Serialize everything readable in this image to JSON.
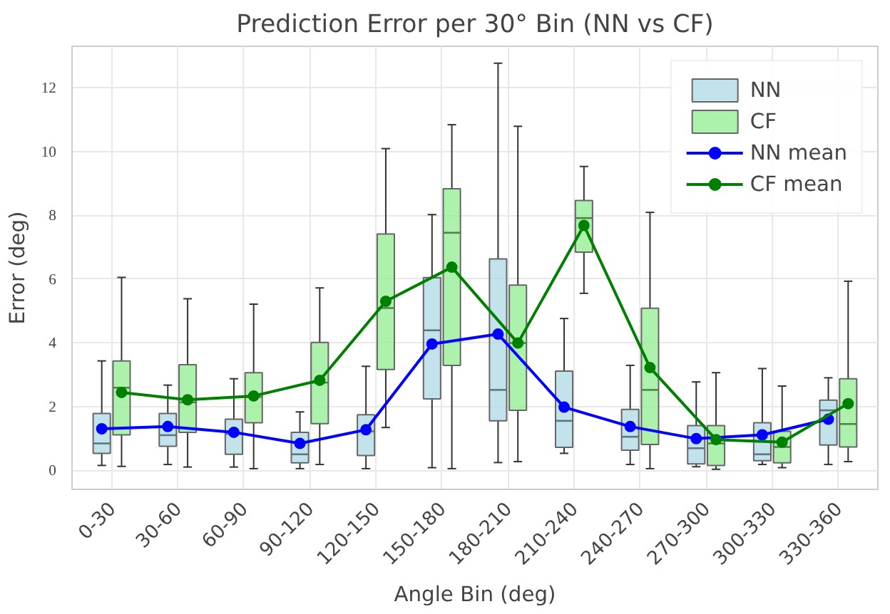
{
  "chart_data": {
    "type": "box",
    "title": "Prediction Error per 30° Bin (NN vs CF)",
    "xlabel": "Angle Bin (deg)",
    "ylabel": "Error (deg)",
    "categories": [
      "0-30",
      "30-60",
      "60-90",
      "90-120",
      "120-150",
      "150-180",
      "180-210",
      "210-240",
      "240-270",
      "270-300",
      "300-330",
      "330-360"
    ],
    "ylim": [
      -0.6,
      13.3
    ],
    "yticks": [
      0,
      2,
      4,
      6,
      8,
      10,
      12
    ],
    "grid": true,
    "legend": "top right",
    "series": [
      {
        "name": "NN",
        "color": "#add8e6",
        "boxes": [
          {
            "low": 0.15,
            "q1": 0.53,
            "median": 0.84,
            "q3": 1.78,
            "high": 3.43
          },
          {
            "low": 0.18,
            "q1": 0.75,
            "median": 1.1,
            "q3": 1.78,
            "high": 2.67
          },
          {
            "low": 0.1,
            "q1": 0.5,
            "median": 1.14,
            "q3": 1.6,
            "high": 2.87
          },
          {
            "low": 0.05,
            "q1": 0.23,
            "median": 0.5,
            "q3": 1.19,
            "high": 1.83
          },
          {
            "low": 0.05,
            "q1": 0.46,
            "median": 1.22,
            "q3": 1.74,
            "high": 3.26
          },
          {
            "low": 0.08,
            "q1": 2.24,
            "median": 4.39,
            "q3": 6.04,
            "high": 8.02
          },
          {
            "low": 0.24,
            "q1": 1.55,
            "median": 2.52,
            "q3": 6.63,
            "high": 12.77
          },
          {
            "low": 0.53,
            "q1": 0.72,
            "median": 1.55,
            "q3": 3.11,
            "high": 4.76
          },
          {
            "low": 0.18,
            "q1": 0.63,
            "median": 1.05,
            "q3": 1.91,
            "high": 3.29
          },
          {
            "low": 0.11,
            "q1": 0.2,
            "median": 0.69,
            "q3": 1.4,
            "high": 2.77
          },
          {
            "low": 0.18,
            "q1": 0.3,
            "median": 0.5,
            "q3": 1.49,
            "high": 3.19
          },
          {
            "low": 0.18,
            "q1": 0.79,
            "median": 1.88,
            "q3": 2.2,
            "high": 2.9
          }
        ]
      },
      {
        "name": "CF",
        "color": "#90ee90",
        "boxes": [
          {
            "low": 0.12,
            "q1": 1.11,
            "median": 2.59,
            "q3": 3.43,
            "high": 6.05
          },
          {
            "low": 0.1,
            "q1": 1.19,
            "median": 2.13,
            "q3": 3.31,
            "high": 5.38
          },
          {
            "low": 0.05,
            "q1": 1.49,
            "median": 2.3,
            "q3": 3.06,
            "high": 5.21
          },
          {
            "low": 0.18,
            "q1": 1.46,
            "median": 2.75,
            "q3": 4.01,
            "high": 5.72
          },
          {
            "low": 1.34,
            "q1": 3.16,
            "median": 5.09,
            "q3": 7.41,
            "high": 10.09
          },
          {
            "low": 0.05,
            "q1": 3.29,
            "median": 7.45,
            "q3": 8.83,
            "high": 10.84
          },
          {
            "low": 0.27,
            "q1": 1.88,
            "median": 3.99,
            "q3": 5.81,
            "high": 10.79
          },
          {
            "low": 5.55,
            "q1": 6.84,
            "median": 7.91,
            "q3": 8.46,
            "high": 9.53
          },
          {
            "low": 0.05,
            "q1": 0.81,
            "median": 2.52,
            "q3": 5.08,
            "high": 8.09
          },
          {
            "low": 0.03,
            "q1": 0.15,
            "median": 0.84,
            "q3": 1.4,
            "high": 3.06
          },
          {
            "low": 0.08,
            "q1": 0.23,
            "median": 0.73,
            "q3": 1.22,
            "high": 2.64
          },
          {
            "low": 0.27,
            "q1": 0.73,
            "median": 1.45,
            "q3": 2.87,
            "high": 5.93
          }
        ]
      },
      {
        "name": "NN mean",
        "type": "line",
        "color": "#0000ff",
        "marker": "circle",
        "values": [
          1.3,
          1.37,
          1.19,
          0.84,
          1.27,
          3.96,
          4.27,
          1.98,
          1.37,
          0.99,
          1.11,
          1.6
        ]
      },
      {
        "name": "CF mean",
        "type": "line",
        "color": "#008000",
        "marker": "circle",
        "values": [
          2.44,
          2.21,
          2.33,
          2.82,
          5.3,
          6.37,
          3.99,
          7.68,
          3.22,
          0.96,
          0.88,
          2.09
        ]
      }
    ]
  }
}
